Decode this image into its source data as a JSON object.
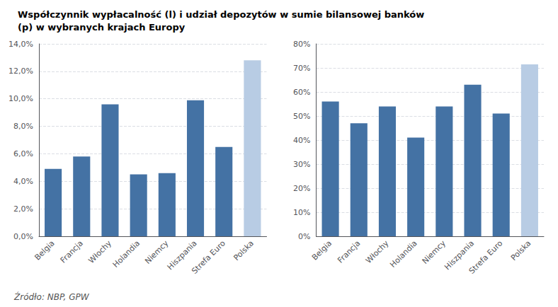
{
  "chart_data": [
    {
      "type": "bar",
      "title": "Współczynnik wypłacalność (l) i udział depozytów w sumie bilansowej banków\n(p) w wybranych krajach Europy",
      "annotation": "Źródło: NBP, GPW",
      "categories": [
        "Belgia",
        "Francja",
        "Włochy",
        "Holandia",
        "Niemcy",
        "Hiszpania",
        "Strefa Euro",
        "Polska"
      ],
      "values": [
        0.049,
        0.058,
        0.096,
        0.045,
        0.046,
        0.099,
        0.065,
        0.128
      ],
      "colors": [
        "#4472a4",
        "#4472a4",
        "#4472a4",
        "#4472a4",
        "#4472a4",
        "#4472a4",
        "#4472a4",
        "#b8cce4"
      ],
      "ylim": [
        0,
        0.14
      ],
      "yticks": [
        {
          "value": 0.0,
          "label": "0,0%"
        },
        {
          "value": 0.02,
          "label": "2,0%"
        },
        {
          "value": 0.04,
          "label": "4,0%"
        },
        {
          "value": 0.06,
          "label": "6,0%"
        },
        {
          "value": 0.08,
          "label": "8,0%"
        },
        {
          "value": 0.1,
          "label": "10,0%"
        },
        {
          "value": 0.12,
          "label": "12,0%"
        },
        {
          "value": 0.14,
          "label": "14,0%"
        }
      ],
      "grid": true
    },
    {
      "type": "bar",
      "categories": [
        "Belgia",
        "Francja",
        "Włochy",
        "Holandia",
        "Niemcy",
        "Hiszpania",
        "Strefa Euro",
        "Polska"
      ],
      "values": [
        0.56,
        0.47,
        0.54,
        0.41,
        0.54,
        0.63,
        0.51,
        0.715
      ],
      "colors": [
        "#4472a4",
        "#4472a4",
        "#4472a4",
        "#4472a4",
        "#4472a4",
        "#4472a4",
        "#4472a4",
        "#b8cce4"
      ],
      "ylim": [
        0,
        0.8
      ],
      "yticks": [
        {
          "value": 0.0,
          "label": "0%"
        },
        {
          "value": 0.1,
          "label": "10%"
        },
        {
          "value": 0.2,
          "label": "20%"
        },
        {
          "value": 0.3,
          "label": "30%"
        },
        {
          "value": 0.4,
          "label": "40%"
        },
        {
          "value": 0.5,
          "label": "50%"
        },
        {
          "value": 0.6,
          "label": "60%"
        },
        {
          "value": 0.7,
          "label": "70%"
        },
        {
          "value": 0.8,
          "label": "80%"
        }
      ],
      "grid": true
    }
  ]
}
